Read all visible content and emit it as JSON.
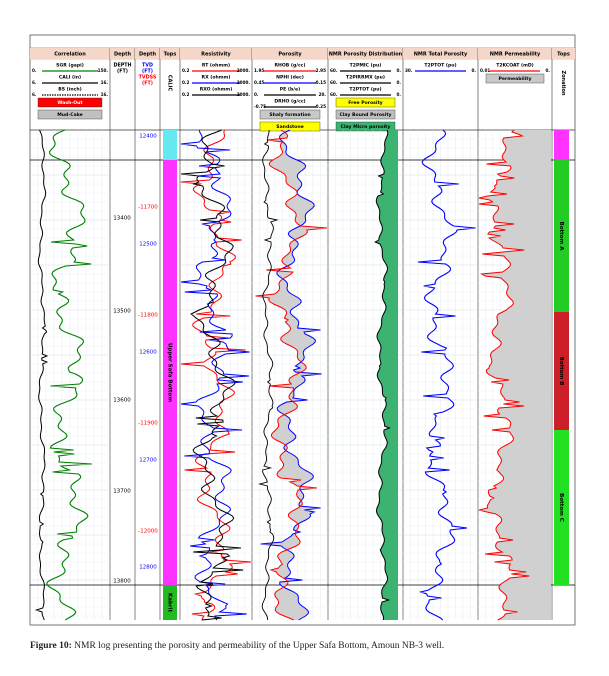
{
  "columns": [
    {
      "title": "Correlation",
      "curves": [
        {
          "name": "SGR (gapi)",
          "min": "0.",
          "max": "150.",
          "color": "#008000"
        },
        {
          "name": "CALI (in)",
          "min": "6.",
          "max": "16.",
          "color": "#000000"
        },
        {
          "name": "BS (inch)",
          "min": "6.",
          "max": "16.",
          "color": "#000000"
        }
      ],
      "legends": [
        {
          "label": "Wash-Out",
          "color": "#ff0000"
        },
        {
          "label": "Mud-Cake",
          "color": "#c0c0c0"
        }
      ]
    },
    {
      "title": "Depth",
      "labels": [
        {
          "text": "DEPTH",
          "color": "#000000"
        },
        {
          "text": "(FT)",
          "color": "#000000"
        }
      ]
    },
    {
      "title": "Depth",
      "labels": [
        {
          "text": "TVD",
          "color": "#0000ff"
        },
        {
          "text": "(FT)",
          "color": "#0000ff"
        },
        {
          "text": "TVDSS",
          "color": "#ff0000"
        },
        {
          "text": "(FT)",
          "color": "#ff0000"
        }
      ]
    },
    {
      "title": "Tops",
      "labels": [
        {
          "text": "CALIC",
          "color": "#000000"
        }
      ]
    },
    {
      "title": "Resistivity",
      "curves": [
        {
          "name": "RT (ohmm)",
          "min": "0.2",
          "max": "2000.",
          "color": "#ff0000"
        },
        {
          "name": "RX (ohmm)",
          "min": "0.2",
          "max": "2000.",
          "color": "#0000ff"
        },
        {
          "name": "RXO (ohmm)",
          "min": "0.2",
          "max": "2000.",
          "color": "#000000"
        }
      ]
    },
    {
      "title": "Porosity",
      "curves": [
        {
          "name": "RHOB (g/cc)",
          "min": "1.95",
          "max": "2.95",
          "color": "#ff0000"
        },
        {
          "name": "NPHI (dec)",
          "min": "0.45",
          "max": "-0.15",
          "color": "#0000ff"
        },
        {
          "name": "PE (b/e)",
          "min": "0.",
          "max": "20.",
          "color": "#000000"
        },
        {
          "name": "DRHO (g/cc)",
          "min": "-0.75",
          "max": "0.25",
          "color": "#000000"
        }
      ],
      "legends": [
        {
          "label": "Shaly formation",
          "color": "#c8c8c8"
        },
        {
          "label": "Sandstone",
          "color": "#ffff00"
        }
      ]
    },
    {
      "title": "NMR Porosity Distribution",
      "curves": [
        {
          "name": "T2PMIC (pu)",
          "min": "60.",
          "max": "0.",
          "color": "#000000"
        },
        {
          "name": "T2PIRRMX (pu)",
          "min": "60.",
          "max": "0.",
          "color": "#000000"
        },
        {
          "name": "T2PTOT (pu)",
          "min": "60.",
          "max": "0.",
          "color": "#000000"
        }
      ],
      "legends": [
        {
          "label": "Free Porosity",
          "color": "#ffff00"
        },
        {
          "label": "Clay Bound Porosity",
          "color": "#c0c0c0"
        },
        {
          "label": "Clay Micro porosity",
          "color": "#3cb371"
        }
      ]
    },
    {
      "title": "NMR Total Porosity",
      "curves": [
        {
          "name": "T2PTOT (pu)",
          "min": "30.",
          "max": "0.",
          "color": "#0000ff"
        }
      ]
    },
    {
      "title": "NMR Permeability",
      "curves": [
        {
          "name": "T2KCOAT (mD)",
          "min": "0.01",
          "max": "0.",
          "color": "#ff0000"
        }
      ],
      "legends": [
        {
          "label": "Permeability",
          "color": "#c8c8c8"
        }
      ]
    },
    {
      "title": "Tops",
      "labels": [
        {
          "text": "Zonation",
          "color": "#000000"
        }
      ]
    }
  ],
  "depth_labels": {
    "md": [
      "13400",
      "13500",
      "13600",
      "13700",
      "13800"
    ],
    "tvd": [
      "12400",
      "12500",
      "12600",
      "12700",
      "12800"
    ],
    "tvdss": [
      "-11700",
      "-11800",
      "-11900",
      "-12000"
    ]
  },
  "tops": [
    "Upper Safa Bottom",
    "Kabrit"
  ],
  "zonation": [
    "Bottom A",
    "Bottom B",
    "Bottom C"
  ],
  "caption": {
    "label": "Figure 10:",
    "text": "NMR log presenting the porosity and permeability of the Upper Safa Bottom, Amoun NB-3 well."
  }
}
